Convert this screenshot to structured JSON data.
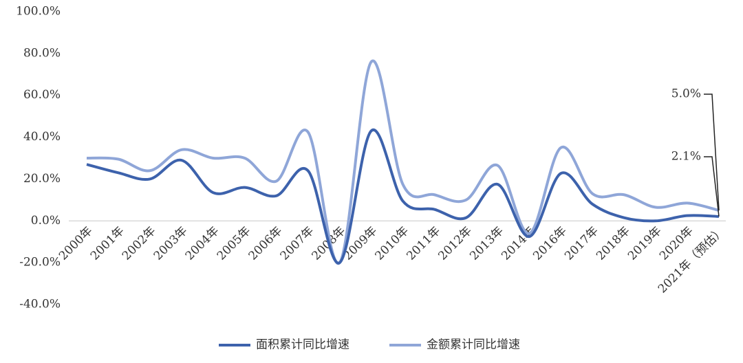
{
  "chart_data": {
    "type": "line",
    "categories": [
      "2000年",
      "2001年",
      "2002年",
      "2003年",
      "2004年",
      "2005年",
      "2006年",
      "2007年",
      "2008年",
      "2009年",
      "2010年",
      "2011年",
      "2012年",
      "2013年",
      "2014年",
      "2016年",
      "2017年",
      "2018年",
      "2019年",
      "2020年",
      "2021年（预估）"
    ],
    "series": [
      {
        "name": "面积累计同比增速",
        "color": "#3d62ac",
        "values": [
          27,
          23,
          20,
          29,
          13.5,
          16,
          12,
          24,
          -20,
          43,
          9.5,
          5.5,
          1.5,
          17.5,
          -7.5,
          22.7,
          8,
          1.5,
          0,
          2.5,
          2.1
        ],
        "value_labels": [
          null,
          null,
          null,
          null,
          null,
          null,
          null,
          null,
          null,
          null,
          null,
          null,
          null,
          null,
          null,
          null,
          null,
          null,
          null,
          null,
          "2.1%"
        ]
      },
      {
        "name": "金额累计同比增速",
        "color": "#8fa6d8",
        "values": [
          30,
          29.5,
          24,
          34,
          30,
          30,
          19,
          42.5,
          -20,
          76,
          17.5,
          12.5,
          10,
          26.5,
          -6,
          35,
          13,
          12.5,
          6.5,
          8.5,
          5.0
        ],
        "value_labels": [
          null,
          null,
          null,
          null,
          null,
          null,
          null,
          null,
          null,
          null,
          null,
          null,
          null,
          null,
          null,
          null,
          null,
          null,
          null,
          null,
          "5.0%"
        ]
      }
    ],
    "ylim": [
      -40,
      100
    ],
    "yticks": [
      {
        "value": -40,
        "label": "-40.0%"
      },
      {
        "value": -20,
        "label": "-20.0%"
      },
      {
        "value": 0,
        "label": "0.0%"
      },
      {
        "value": 20,
        "label": "20.0%"
      },
      {
        "value": 40,
        "label": "40.0%"
      },
      {
        "value": 60,
        "label": "60.0%"
      },
      {
        "value": 80,
        "label": "80.0%"
      },
      {
        "value": 100,
        "label": "100.0%"
      }
    ],
    "legend": "bottom"
  }
}
